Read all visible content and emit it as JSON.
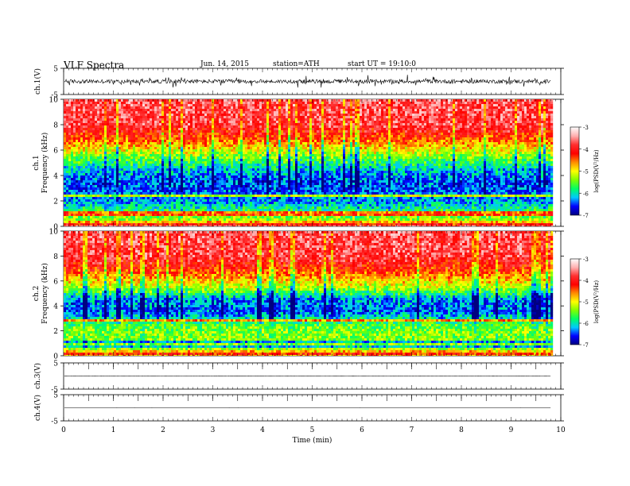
{
  "header": {
    "title": "VLF Spectra",
    "date": "Jun. 14, 2015",
    "station": "station=ATH",
    "start": "start  UT =   19:10:0"
  },
  "colors": {
    "spectrum_stops": [
      "#000080",
      "#0000ff",
      "#00c8ff",
      "#00ff64",
      "#7fff00",
      "#ffff00",
      "#ff8c00",
      "#ff0000",
      "#ff3030",
      "#ffb0b0",
      "#ffffff"
    ],
    "trace": "#000000",
    "frame": "#000000"
  },
  "chart_data": [
    {
      "type": "line",
      "name": "ch.1 waveform",
      "ylabel": "ch.1(V)",
      "ylim": [
        -5,
        5
      ],
      "yticks": [
        "5",
        "-5"
      ],
      "xlim": [
        0,
        10
      ],
      "data_end_min": 9.8,
      "baseline": 0,
      "amplitude": 2.5
    },
    {
      "type": "heatmap",
      "name": "ch.1 spectrogram",
      "ylabel": [
        "ch.1",
        "Frequency  (kHz)"
      ],
      "ylim": [
        0,
        10
      ],
      "yticks": [
        "0",
        "2",
        "4",
        "6",
        "8",
        "10"
      ],
      "xlim": [
        0,
        10
      ],
      "data_end_min": 9.8,
      "colorbar": {
        "label": "log(PSD(V²/Hz)",
        "range": [
          -7,
          -3
        ],
        "ticks": [
          "-3",
          "-4",
          "-5",
          "-6",
          "-7"
        ]
      },
      "profile": {
        "freq_khz": [
          0,
          0.5,
          1,
          2,
          2.5,
          3.5,
          4.5,
          5.5,
          7,
          8,
          10
        ],
        "log_psd": [
          -3.6,
          -5.3,
          -5.6,
          -6.3,
          -6.4,
          -6.5,
          -6.1,
          -5.4,
          -4.3,
          -3.8,
          -3.7
        ]
      }
    },
    {
      "type": "heatmap",
      "name": "ch.2 spectrogram",
      "ylabel": [
        "ch.2",
        "Frequency  (kHz)"
      ],
      "ylim": [
        0,
        10
      ],
      "yticks": [
        "0",
        "2",
        "4",
        "6",
        "8",
        "10"
      ],
      "xlim": [
        0,
        10
      ],
      "data_end_min": 9.8,
      "colorbar": {
        "label": "log(PSD(V²/Hz)",
        "range": [
          -7,
          -3
        ],
        "ticks": [
          "-3",
          "-4",
          "-5",
          "-6",
          "-7"
        ]
      },
      "profile": {
        "freq_khz": [
          0,
          0.5,
          1,
          2,
          2.5,
          3.5,
          4.5,
          5.5,
          7,
          8,
          10
        ],
        "log_psd": [
          -3.8,
          -5.2,
          -5.4,
          -5.4,
          -5.6,
          -6.4,
          -6.3,
          -5.2,
          -4.2,
          -3.8,
          -3.7
        ]
      }
    },
    {
      "type": "line",
      "name": "ch.3 waveform",
      "ylabel": "ch.3(V)",
      "ylim": [
        -5,
        5
      ],
      "yticks": [
        "5",
        "-5"
      ],
      "xlim": [
        0,
        10
      ],
      "data_end_min": 9.8,
      "baseline": 0,
      "amplitude": 0.1
    },
    {
      "type": "line",
      "name": "ch.4 waveform",
      "ylabel": "ch.4(V)",
      "ylim": [
        -5,
        5
      ],
      "yticks": [
        "5",
        "-5"
      ],
      "xlim": [
        0,
        10
      ],
      "data_end_min": 9.8,
      "baseline": 0,
      "amplitude": 0.02,
      "xlabel": "Time  (min)",
      "xticks": [
        "0",
        "1",
        "2",
        "3",
        "4",
        "5",
        "6",
        "7",
        "8",
        "9",
        "10"
      ]
    }
  ]
}
